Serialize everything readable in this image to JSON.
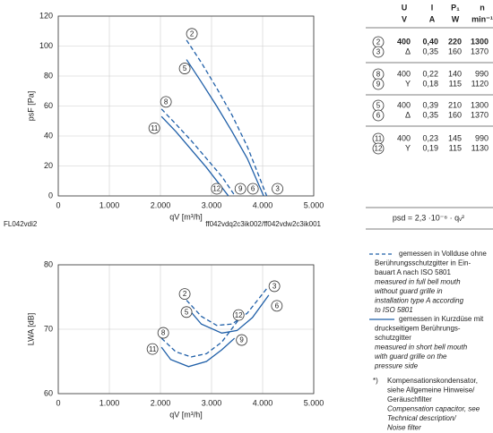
{
  "chart_data": [
    {
      "type": "line",
      "xlabel": "qV [m³/h]",
      "ylabel": "psF [Pa]",
      "corner_label": "FL042vdi2",
      "note": "ff042vdq2c3ik002/ff042vdw2c3ik001",
      "xlim": [
        0,
        5000
      ],
      "xticks": [
        0,
        {
          "value": 1000,
          "label": "1.000"
        },
        {
          "value": 2000,
          "label": "2.000"
        },
        {
          "value": 3000,
          "label": "3.000"
        },
        {
          "value": 4000,
          "label": "4.000"
        },
        {
          "value": 5000,
          "label": "5.000"
        }
      ],
      "ylim": [
        0,
        120
      ],
      "yticks": [
        0,
        20,
        40,
        60,
        80,
        100,
        120
      ],
      "grid": true,
      "series": [
        {
          "start_label": "2",
          "end_label": "3",
          "color": "#1f5fa8",
          "dashed": true,
          "x": [
            2510,
            2800,
            3100,
            3400,
            3700,
            4080
          ],
          "values": [
            104,
            89,
            72,
            54,
            33,
            0
          ]
        },
        {
          "start_label": "5",
          "end_label": "6",
          "color": "#1f5fa8",
          "dashed": false,
          "x": [
            2510,
            2800,
            3100,
            3400,
            3700,
            4020
          ],
          "values": [
            91,
            76,
            60,
            43,
            25,
            0
          ]
        },
        {
          "start_label": "8",
          "end_label": "9",
          "color": "#1f5fa8",
          "dashed": true,
          "x": [
            2020,
            2300,
            2600,
            2900,
            3200,
            3460
          ],
          "values": [
            58,
            48,
            37,
            25,
            13,
            0
          ]
        },
        {
          "start_label": "11",
          "end_label": "12",
          "color": "#1f5fa8",
          "dashed": false,
          "x": [
            2020,
            2300,
            2600,
            2900,
            3330
          ],
          "values": [
            53,
            43,
            31,
            19,
            0
          ]
        }
      ]
    },
    {
      "type": "line",
      "xlabel": "qV [m³/h]",
      "ylabel": "LWA [dB]",
      "xlim": [
        0,
        5000
      ],
      "xticks": [
        0,
        {
          "value": 1000,
          "label": "1.000"
        },
        {
          "value": 2000,
          "label": "2.000"
        },
        {
          "value": 3000,
          "label": "3.000"
        },
        {
          "value": 4000,
          "label": "4.000"
        },
        {
          "value": 5000,
          "label": "5.000"
        }
      ],
      "ylim": [
        60,
        80
      ],
      "yticks": [
        60,
        70,
        80
      ],
      "grid": true,
      "series": [
        {
          "start_label": "2",
          "end_label": "3",
          "color": "#1f5fa8",
          "dashed": true,
          "x": [
            2510,
            2800,
            3100,
            3400,
            3700,
            4090
          ],
          "values": [
            74.5,
            72,
            70.6,
            70.8,
            72.5,
            76.4
          ]
        },
        {
          "start_label": "5",
          "end_label": "6",
          "color": "#1f5fa8",
          "dashed": false,
          "x": [
            2510,
            2800,
            3200,
            3500,
            3800,
            4120
          ],
          "values": [
            73.5,
            70.8,
            69.4,
            69.8,
            71.8,
            75.3
          ]
        },
        {
          "start_label": "8",
          "end_label": "12",
          "color": "#1f5fa8",
          "dashed": true,
          "x": [
            2020,
            2300,
            2600,
            2900,
            3200,
            3600
          ],
          "values": [
            68.6,
            66.5,
            65.7,
            66.2,
            68,
            72.2
          ]
        },
        {
          "start_label": "11",
          "end_label": "9",
          "color": "#1f5fa8",
          "dashed": false,
          "x": [
            2020,
            2200,
            2550,
            2900,
            3200,
            3450
          ],
          "values": [
            67.2,
            65.3,
            64.2,
            65,
            66.8,
            68.6
          ]
        }
      ]
    }
  ],
  "table": {
    "header": [
      "U",
      "I",
      "P₁",
      "n"
    ],
    "units": [
      "V",
      "A",
      "W",
      "min⁻¹"
    ],
    "rows": [
      [
        "2",
        "400",
        "0,40",
        "220",
        "1300"
      ],
      [
        "3",
        "Δ",
        "0,35",
        "160",
        "1370"
      ],
      [
        "8",
        "400",
        "0,22",
        "140",
        "990"
      ],
      [
        "9",
        "Y",
        "0,18",
        "115",
        "1120"
      ],
      [
        "5",
        "400",
        "0,39",
        "210",
        "1300"
      ],
      [
        "6",
        "Δ",
        "0,35",
        "160",
        "1370"
      ],
      [
        "11",
        "400",
        "0,23",
        "145",
        "990"
      ],
      [
        "12",
        "Y",
        "0,19",
        "115",
        "1130"
      ]
    ]
  },
  "formula": "psd = 2,3 ·10⁻⁶ · qᵥ²",
  "legend": [
    {
      "lines": [
        "gemessen in Vollduse ohne",
        "Berührungsschutzgitter in Ein-",
        "bauart A nach ISO 5801"
      ],
      "italic": [
        "measured in full bell mouth",
        "without guard grille in",
        "installation type A according",
        "to ISO 5801"
      ]
    },
    {
      "lines": [
        "gemessen in Kurzdüse mit",
        "druckseitigem Berührungs-",
        "schutzgitter"
      ],
      "italic": [
        "measured in short bell mouth",
        "with guard grille on the",
        "pressure side"
      ]
    }
  ],
  "footnote": {
    "marker": "*)",
    "lines": [
      "Kompensationskondensator,",
      "siehe Allgemeine Hinweise/",
      "Geräuschfilter"
    ],
    "italic": [
      "Compensation capacitor, see",
      "Technical description/",
      "Noise filter"
    ]
  }
}
